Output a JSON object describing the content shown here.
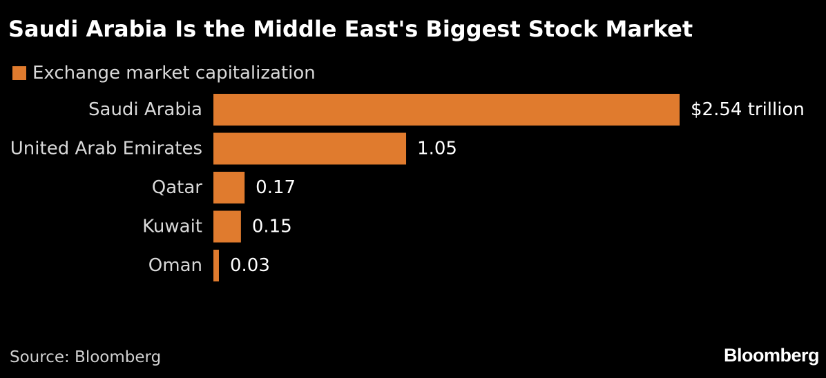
{
  "title": "Saudi Arabia Is the Middle East's Biggest Stock Market",
  "source": "Source: Bloomberg",
  "brand": "Bloomberg",
  "colors": {
    "background": "#000000",
    "bar": "#e07b2e",
    "text": "#ffffff",
    "category_text": "#d9d9d9"
  },
  "chart_data": {
    "type": "bar",
    "orientation": "horizontal",
    "categories": [
      "Saudi Arabia",
      "United Arab Emirates",
      "Qatar",
      "Kuwait",
      "Oman"
    ],
    "series": [
      {
        "name": "Exchange market capitalization",
        "values": [
          2.54,
          1.05,
          0.17,
          0.15,
          0.03
        ]
      }
    ],
    "data_labels": [
      "$2.54 trillion",
      "1.05",
      "0.17",
      "0.15",
      "0.03"
    ],
    "unit": "trillion USD",
    "xlim": [
      0,
      2.54
    ],
    "grid": false,
    "legend_position": "top-left"
  }
}
